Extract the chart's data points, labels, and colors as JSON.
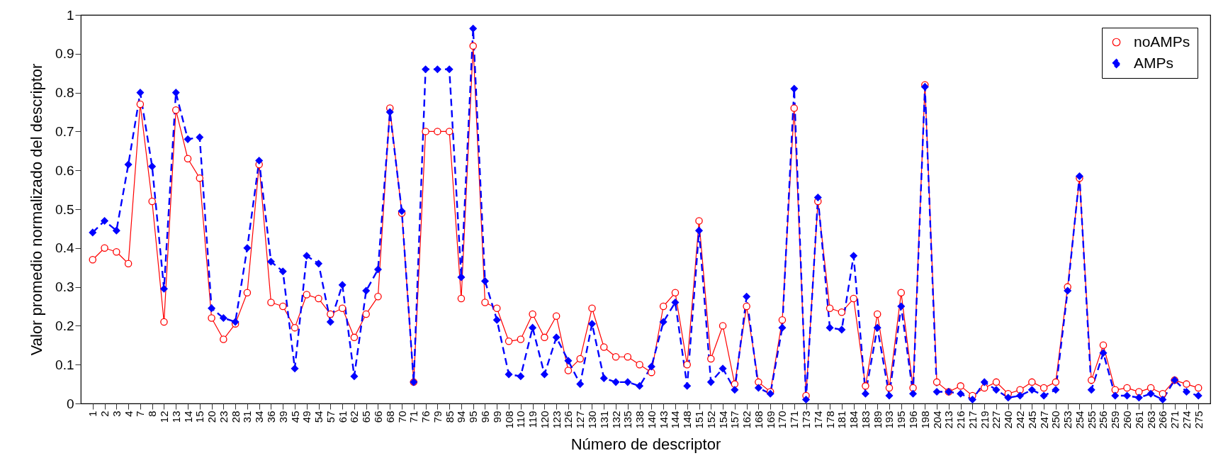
{
  "chart_data": {
    "type": "line",
    "xlabel": "Número de descriptor",
    "ylabel": "Valor promedio normalizado del descriptor",
    "categories": [
      "1",
      "2",
      "3",
      "4",
      "7",
      "8",
      "12",
      "13",
      "14",
      "15",
      "20",
      "23",
      "28",
      "31",
      "34",
      "36",
      "39",
      "45",
      "49",
      "54",
      "57",
      "61",
      "62",
      "65",
      "66",
      "68",
      "70",
      "71",
      "76",
      "79",
      "85",
      "94",
      "95",
      "96",
      "99",
      "108",
      "110",
      "119",
      "120",
      "123",
      "126",
      "127",
      "130",
      "131",
      "132",
      "135",
      "138",
      "140",
      "143",
      "144",
      "148",
      "151",
      "152",
      "154",
      "157",
      "162",
      "168",
      "169",
      "170",
      "171",
      "173",
      "174",
      "178",
      "181",
      "184",
      "183",
      "189",
      "193",
      "195",
      "196",
      "198",
      "204",
      "213",
      "216",
      "217",
      "219",
      "227",
      "240",
      "242",
      "245",
      "247",
      "250",
      "253",
      "254",
      "255",
      "256",
      "259",
      "260",
      "261",
      "263",
      "266",
      "271",
      "274",
      "275"
    ],
    "series": [
      {
        "name": "noAMPs",
        "color": "#ff0000",
        "marker": "circle",
        "line_style": "solid",
        "values": [
          0.37,
          0.4,
          0.39,
          0.36,
          0.77,
          0.52,
          0.21,
          0.755,
          0.63,
          0.58,
          0.22,
          0.165,
          0.205,
          0.285,
          0.615,
          0.26,
          0.25,
          0.195,
          0.28,
          0.27,
          0.23,
          0.245,
          0.17,
          0.23,
          0.275,
          0.76,
          0.49,
          0.055,
          0.7,
          0.7,
          0.7,
          0.27,
          0.92,
          0.26,
          0.245,
          0.16,
          0.165,
          0.23,
          0.17,
          0.225,
          0.085,
          0.115,
          0.245,
          0.145,
          0.12,
          0.12,
          0.1,
          0.08,
          0.25,
          0.285,
          0.1,
          0.47,
          0.115,
          0.2,
          0.05,
          0.25,
          0.055,
          0.03,
          0.215,
          0.76,
          0.02,
          0.52,
          0.245,
          0.235,
          0.27,
          0.045,
          0.23,
          0.04,
          0.285,
          0.04,
          0.82,
          0.055,
          0.03,
          0.045,
          0.02,
          0.04,
          0.055,
          0.025,
          0.035,
          0.055,
          0.04,
          0.055,
          0.3,
          0.58,
          0.06,
          0.15,
          0.035,
          0.04,
          0.03,
          0.04,
          0.025,
          0.06,
          0.05,
          0.04
        ]
      },
      {
        "name": "AMPs",
        "color": "#0000ff",
        "marker": "diamond",
        "line_style": "dashed",
        "values": [
          0.44,
          0.47,
          0.445,
          0.615,
          0.8,
          0.61,
          0.295,
          0.8,
          0.68,
          0.685,
          0.245,
          0.22,
          0.21,
          0.4,
          0.625,
          0.365,
          0.34,
          0.09,
          0.38,
          0.36,
          0.21,
          0.305,
          0.07,
          0.29,
          0.345,
          0.75,
          0.495,
          0.055,
          0.86,
          0.86,
          0.86,
          0.325,
          0.965,
          0.315,
          0.215,
          0.075,
          0.07,
          0.195,
          0.075,
          0.17,
          0.11,
          0.05,
          0.205,
          0.065,
          0.055,
          0.055,
          0.045,
          0.095,
          0.21,
          0.26,
          0.045,
          0.445,
          0.055,
          0.09,
          0.035,
          0.275,
          0.04,
          0.025,
          0.195,
          0.81,
          0.01,
          0.53,
          0.195,
          0.19,
          0.38,
          0.025,
          0.195,
          0.02,
          0.25,
          0.025,
          0.815,
          0.03,
          0.03,
          0.025,
          0.01,
          0.055,
          0.035,
          0.015,
          0.02,
          0.035,
          0.02,
          0.035,
          0.29,
          0.585,
          0.035,
          0.13,
          0.02,
          0.02,
          0.015,
          0.025,
          0.01,
          0.06,
          0.03,
          0.02
        ]
      }
    ],
    "ylim": [
      0,
      1
    ],
    "yticks": [
      0,
      0.1,
      0.2,
      0.3,
      0.4,
      0.5,
      0.6,
      0.7,
      0.8,
      0.9,
      1
    ],
    "grid": false,
    "legend": "top right"
  }
}
